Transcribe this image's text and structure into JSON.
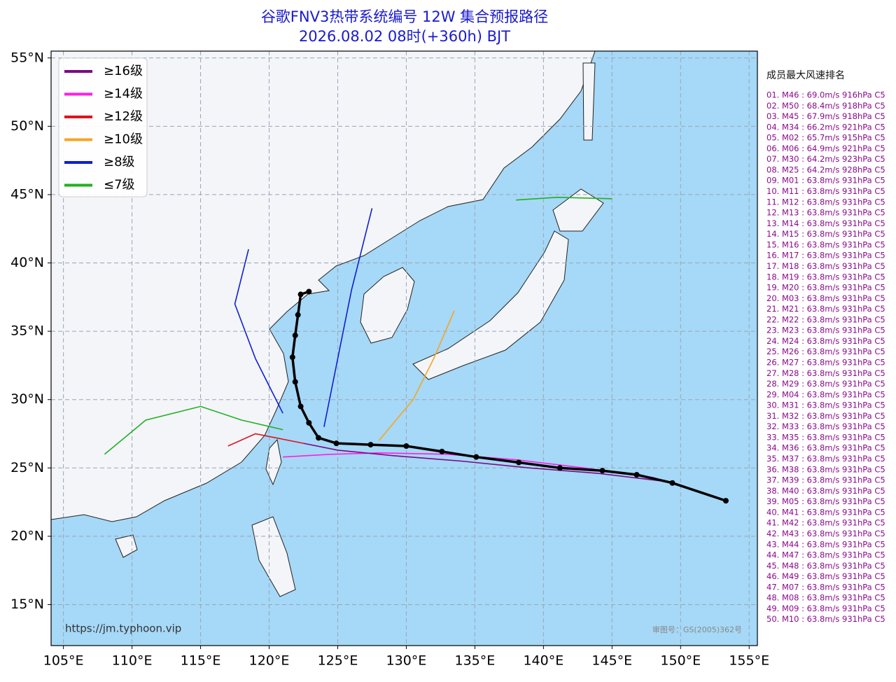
{
  "chart_data": {
    "type": "map",
    "title": "谷歌FNV3热带系统编号 12W 集合预报路径",
    "subtitle": "2026.08.02 08时(+360h) BJT",
    "xlim": [
      104.1,
      155.6
    ],
    "ylim": [
      12.0,
      55.5
    ],
    "xticks": [
      {
        "value": 105,
        "label": "105°E"
      },
      {
        "value": 110,
        "label": "110°E"
      },
      {
        "value": 115,
        "label": "115°E"
      },
      {
        "value": 120,
        "label": "120°E"
      },
      {
        "value": 125,
        "label": "125°E"
      },
      {
        "value": 130,
        "label": "130°E"
      },
      {
        "value": 135,
        "label": "135°E"
      },
      {
        "value": 140,
        "label": "140°E"
      },
      {
        "value": 145,
        "label": "145°E"
      },
      {
        "value": 150,
        "label": "150°E"
      },
      {
        "value": 155,
        "label": "155°E"
      }
    ],
    "yticks": [
      {
        "value": 15,
        "label": "15°N"
      },
      {
        "value": 20,
        "label": "20°N"
      },
      {
        "value": 25,
        "label": "25°N"
      },
      {
        "value": 30,
        "label": "30°N"
      },
      {
        "value": 35,
        "label": "35°N"
      },
      {
        "value": 40,
        "label": "40°N"
      },
      {
        "value": 45,
        "label": "45°N"
      },
      {
        "value": 50,
        "label": "50°N"
      },
      {
        "value": 55,
        "label": "55°N"
      }
    ],
    "grid": true,
    "legend": [
      {
        "label": "≥16级",
        "color": "#7b0a82"
      },
      {
        "label": "≥14级",
        "color": "#ff1ee6"
      },
      {
        "label": "≥12级",
        "color": "#e0141e"
      },
      {
        "label": "≥10级",
        "color": "#f5a623"
      },
      {
        "label": "≥8级",
        "color": "#1020d0"
      },
      {
        "label": "≤7级",
        "color": "#22b022"
      }
    ],
    "tracks": [
      {
        "color": "#ff1ee6",
        "lon": [
          153.3,
          148,
          143,
          138,
          133,
          128,
          124.5,
          121
        ],
        "lat": [
          22.6,
          24.3,
          25.0,
          25.6,
          26.0,
          26.1,
          26.0,
          25.8
        ]
      },
      {
        "color": "#7b0a82",
        "lon": [
          153.3,
          149,
          144,
          139,
          134,
          129,
          125,
          122.5
        ],
        "lat": [
          22.6,
          24.0,
          24.6,
          25.0,
          25.5,
          25.9,
          26.3,
          26.8
        ]
      },
      {
        "color": "#e0141e",
        "lon": [
          122.5,
          120.5,
          119,
          117
        ],
        "lat": [
          26.8,
          27.2,
          27.5,
          26.6
        ]
      },
      {
        "color": "#f5a623",
        "lon": [
          128,
          130.5,
          132,
          133.5
        ],
        "lat": [
          27.0,
          30.0,
          33.0,
          36.5
        ]
      },
      {
        "color": "#1020d0",
        "lon": [
          124,
          125,
          126,
          127.5
        ],
        "lat": [
          28.0,
          33.0,
          38.0,
          44.0
        ]
      },
      {
        "color": "#22b022",
        "lon": [
          121,
          118,
          115,
          111,
          108
        ],
        "lat": [
          27.8,
          28.5,
          29.5,
          28.5,
          26.0
        ]
      },
      {
        "color": "#22b022",
        "lon": [
          138,
          141,
          145
        ],
        "lat": [
          44.6,
          44.8,
          44.7
        ]
      },
      {
        "color": "#1020d0",
        "lon": [
          121,
          119,
          117.5,
          118.5
        ],
        "lat": [
          29.0,
          33.0,
          37.0,
          41.0
        ]
      }
    ],
    "mean_track": {
      "color": "#000000",
      "lon": [
        153.3,
        149.4,
        146.8,
        144.3,
        141.2,
        138.2,
        135.1,
        132.6,
        130.0,
        127.4,
        124.9,
        123.6,
        122.9,
        122.3,
        121.9,
        121.7,
        121.9,
        122.1,
        122.3,
        122.9
      ],
      "lat": [
        22.6,
        23.9,
        24.5,
        24.8,
        25.0,
        25.4,
        25.8,
        26.2,
        26.6,
        26.7,
        26.8,
        27.2,
        28.3,
        29.5,
        31.3,
        33.1,
        34.7,
        36.2,
        37.7,
        37.9
      ]
    },
    "source": "https://jm.typhoon.vip",
    "approval": "审图号：GS(2005)362号"
  },
  "ranking": {
    "title": "成员最大风速排名",
    "items": [
      "01. M46 : 69.0m/s 916hPa C5",
      "02. M50 : 68.4m/s 918hPa C5",
      "03. M45 : 67.9m/s 918hPa C5",
      "04. M34 : 66.2m/s 921hPa C5",
      "05. M02 : 65.7m/s 915hPa C5",
      "06. M06 : 64.9m/s 921hPa C5",
      "07. M30 : 64.2m/s 923hPa C5",
      "08. M25 : 64.2m/s 928hPa C5",
      "09. M01 : 63.8m/s 931hPa C5",
      "10. M11 : 63.8m/s 931hPa C5",
      "11. M12 : 63.8m/s 931hPa C5",
      "12. M13 : 63.8m/s 931hPa C5",
      "13. M14 : 63.8m/s 931hPa C5",
      "14. M15 : 63.8m/s 931hPa C5",
      "15. M16 : 63.8m/s 931hPa C5",
      "16. M17 : 63.8m/s 931hPa C5",
      "17. M18 : 63.8m/s 931hPa C5",
      "18. M19 : 63.8m/s 931hPa C5",
      "19. M20 : 63.8m/s 931hPa C5",
      "20. M03 : 63.8m/s 931hPa C5",
      "21. M21 : 63.8m/s 931hPa C5",
      "22. M22 : 63.8m/s 931hPa C5",
      "23. M23 : 63.8m/s 931hPa C5",
      "24. M24 : 63.8m/s 931hPa C5",
      "25. M26 : 63.8m/s 931hPa C5",
      "26. M27 : 63.8m/s 931hPa C5",
      "27. M28 : 63.8m/s 931hPa C5",
      "28. M29 : 63.8m/s 931hPa C5",
      "29. M04 : 63.8m/s 931hPa C5",
      "30. M31 : 63.8m/s 931hPa C5",
      "31. M32 : 63.8m/s 931hPa C5",
      "32. M33 : 63.8m/s 931hPa C5",
      "33. M35 : 63.8m/s 931hPa C5",
      "34. M36 : 63.8m/s 931hPa C5",
      "35. M37 : 63.8m/s 931hPa C5",
      "36. M38 : 63.8m/s 931hPa C5",
      "37. M39 : 63.8m/s 931hPa C5",
      "38. M40 : 63.8m/s 931hPa C5",
      "39. M05 : 63.8m/s 931hPa C5",
      "40. M41 : 63.8m/s 931hPa C5",
      "41. M42 : 63.8m/s 931hPa C5",
      "42. M43 : 63.8m/s 931hPa C5",
      "43. M44 : 63.8m/s 931hPa C5",
      "44. M47 : 63.8m/s 931hPa C5",
      "45. M48 : 63.8m/s 931hPa C5",
      "46. M49 : 63.8m/s 931hPa C5",
      "47. M07 : 63.8m/s 931hPa C5",
      "48. M08 : 63.8m/s 931hPa C5",
      "49. M09 : 63.8m/s 931hPa C5",
      "50. M10 : 63.8m/s 931hPa C5"
    ]
  }
}
